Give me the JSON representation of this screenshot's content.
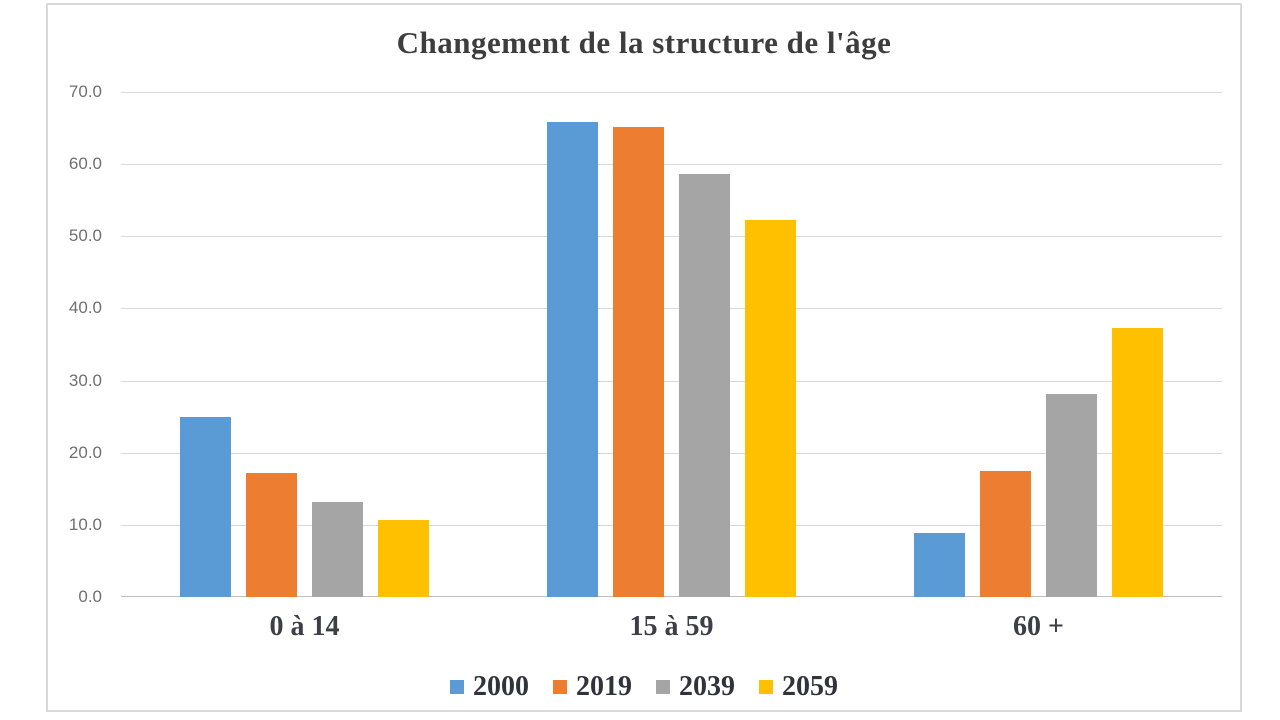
{
  "chart_data": {
    "type": "bar",
    "title": "Changement de la structure de l'âge",
    "categories": [
      "0 à 14",
      "15 à 59",
      "60 +"
    ],
    "series": [
      {
        "name": "2000",
        "color": "#5B9BD5",
        "values": [
          25.0,
          65.8,
          8.9
        ]
      },
      {
        "name": "2019",
        "color": "#ED7D31",
        "values": [
          17.2,
          65.2,
          17.4
        ]
      },
      {
        "name": "2039",
        "color": "#A5A5A5",
        "values": [
          13.1,
          58.6,
          28.1
        ]
      },
      {
        "name": "2059",
        "color": "#FFC000",
        "values": [
          10.7,
          52.2,
          37.3
        ]
      }
    ],
    "ylim": [
      0,
      70
    ],
    "ytick_step": 10,
    "ytick_labels": [
      "0.0",
      "10.0",
      "20.0",
      "30.0",
      "40.0",
      "50.0",
      "60.0",
      "70.0"
    ],
    "grid": true,
    "legend_position": "bottom",
    "colors": {
      "gridline": "#d9d9d9",
      "axis_line": "#bfbfbf",
      "tick_text": "#707070",
      "title_text": "#3d3d3d",
      "category_text": "#3e3e46",
      "legend_text": "#32323c",
      "frame_border": "#d9d9d9",
      "background": "#ffffff"
    }
  }
}
